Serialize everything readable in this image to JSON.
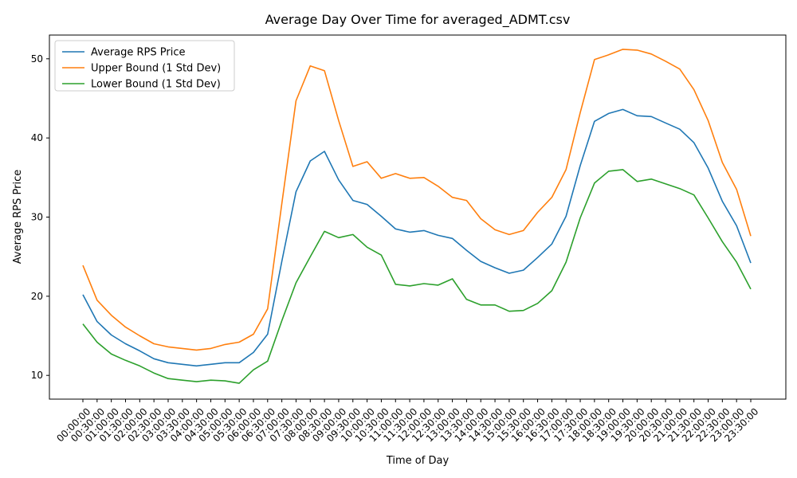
{
  "chart_data": {
    "type": "line",
    "title": "Average Day Over Time for averaged_ADMT.csv",
    "xlabel": "Time of Day",
    "ylabel": "Average RPS Price",
    "ylim": [
      7,
      53
    ],
    "yticks": [
      10,
      20,
      30,
      40,
      50
    ],
    "grid": false,
    "legend_position": "top-left",
    "categories": [
      "00:00:00",
      "00:30:00",
      "01:00:00",
      "01:30:00",
      "02:00:00",
      "02:30:00",
      "03:00:00",
      "03:30:00",
      "04:00:00",
      "04:30:00",
      "05:00:00",
      "05:30:00",
      "06:00:00",
      "06:30:00",
      "07:00:00",
      "07:30:00",
      "08:00:00",
      "08:30:00",
      "09:00:00",
      "09:30:00",
      "10:00:00",
      "10:30:00",
      "11:00:00",
      "11:30:00",
      "12:00:00",
      "12:30:00",
      "13:00:00",
      "13:30:00",
      "14:00:00",
      "14:30:00",
      "15:00:00",
      "15:30:00",
      "16:00:00",
      "16:30:00",
      "17:00:00",
      "17:30:00",
      "18:00:00",
      "18:30:00",
      "19:00:00",
      "19:30:00",
      "20:00:00",
      "20:30:00",
      "21:00:00",
      "21:30:00",
      "22:00:00",
      "22:30:00",
      "23:00:00",
      "23:30:00"
    ],
    "series": [
      {
        "name": "Average RPS Price",
        "color": "#1f77b4",
        "values": [
          20.2,
          16.8,
          15.1,
          14.0,
          13.1,
          12.1,
          11.6,
          11.4,
          11.2,
          11.4,
          11.6,
          11.6,
          12.9,
          15.2,
          24.4,
          33.2,
          37.1,
          38.3,
          34.7,
          32.1,
          31.6,
          30.1,
          28.5,
          28.1,
          28.3,
          27.7,
          27.3,
          25.8,
          24.4,
          23.6,
          22.9,
          23.3,
          24.9,
          26.6,
          30.1,
          36.5,
          42.1,
          43.1,
          43.6,
          42.8,
          42.7,
          41.9,
          41.1,
          39.4,
          36.2,
          32.0,
          28.9,
          24.2
        ]
      },
      {
        "name": "Upper Bound (1 Std Dev)",
        "color": "#ff7f0e",
        "values": [
          23.9,
          19.5,
          17.6,
          16.1,
          15.0,
          14.0,
          13.6,
          13.4,
          13.2,
          13.4,
          13.9,
          14.2,
          15.2,
          18.4,
          31.7,
          44.7,
          49.1,
          48.5,
          42.2,
          36.4,
          37.0,
          34.9,
          35.5,
          34.9,
          35.0,
          33.9,
          32.5,
          32.1,
          29.8,
          28.4,
          27.8,
          28.3,
          30.6,
          32.5,
          36.0,
          43.2,
          49.9,
          50.5,
          51.2,
          51.1,
          50.6,
          49.7,
          48.7,
          46.1,
          42.2,
          36.9,
          33.5,
          27.6
        ]
      },
      {
        "name": "Lower Bound (1 Std Dev)",
        "color": "#2ca02c",
        "values": [
          16.5,
          14.2,
          12.7,
          11.9,
          11.2,
          10.3,
          9.6,
          9.4,
          9.2,
          9.4,
          9.3,
          9.0,
          10.7,
          11.8,
          16.9,
          21.7,
          25.0,
          28.2,
          27.4,
          27.8,
          26.2,
          25.2,
          21.5,
          21.3,
          21.6,
          21.4,
          22.2,
          19.6,
          18.9,
          18.9,
          18.1,
          18.2,
          19.1,
          20.7,
          24.3,
          29.9,
          34.3,
          35.8,
          36.0,
          34.5,
          34.8,
          34.2,
          33.6,
          32.8,
          29.9,
          26.9,
          24.3,
          20.9
        ]
      }
    ]
  }
}
